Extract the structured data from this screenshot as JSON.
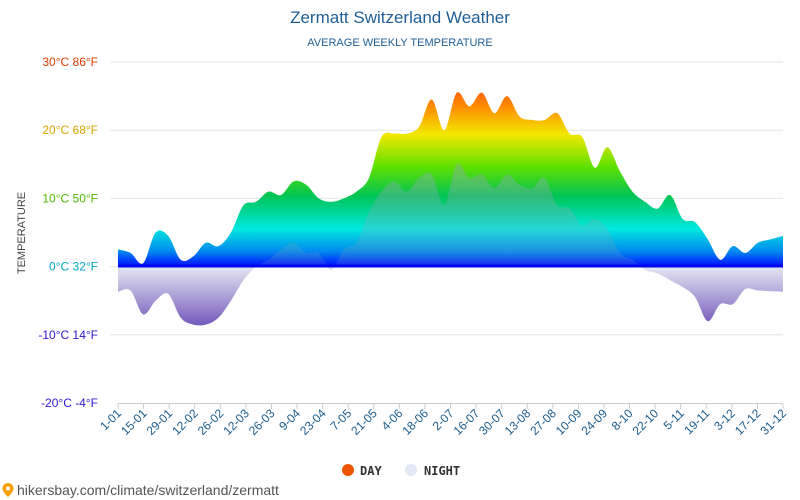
{
  "chart_data": {
    "type": "area",
    "title": "Zermatt Switzerland Weather",
    "subtitle": "AVERAGE WEEKLY TEMPERATURE",
    "ylabel": "TEMPERATURE",
    "ylim": [
      -20,
      30
    ],
    "y_ticks": [
      {
        "value": 30,
        "label": "30°C 86°F",
        "color": "#e03c00"
      },
      {
        "value": 20,
        "label": "20°C 68°F",
        "color": "#d9a400"
      },
      {
        "value": 10,
        "label": "10°C 50°F",
        "color": "#4fb800"
      },
      {
        "value": 0,
        "label": "0°C 32°F",
        "color": "#00a6c8"
      },
      {
        "value": -10,
        "label": "-10°C 14°F",
        "color": "#2c1ad0"
      },
      {
        "value": -20,
        "label": "-20°C -4°F",
        "color": "#2c1ad0"
      }
    ],
    "x_tick_labels": [
      "1-01",
      "15-01",
      "29-01",
      "12-02",
      "26-02",
      "12-03",
      "26-03",
      "9-04",
      "23-04",
      "7-05",
      "21-05",
      "4-06",
      "18-06",
      "2-07",
      "16-07",
      "30-07",
      "13-08",
      "27-08",
      "10-09",
      "24-09",
      "8-10",
      "22-10",
      "5-11",
      "19-11",
      "3-12",
      "17-12",
      "31-12"
    ],
    "series": [
      {
        "name": "DAY",
        "color": "#ee5500",
        "values": [
          2.5,
          2,
          0.5,
          5,
          4.5,
          1,
          1.5,
          3.5,
          3,
          5,
          9,
          9.5,
          11,
          10.5,
          12.5,
          12,
          10,
          9.5,
          10,
          11,
          13,
          19,
          19.5,
          19.5,
          20.5,
          24.5,
          20,
          25.5,
          23.5,
          25.5,
          22.5,
          25,
          22,
          21.5,
          21.5,
          22.5,
          19.5,
          19,
          14.5,
          17.5,
          14,
          11,
          9.5,
          8.5,
          10.5,
          7,
          6.5,
          4,
          1,
          3,
          2,
          3.5,
          4,
          4.5
        ]
      },
      {
        "name": "NIGHT",
        "color": "#e8eef7",
        "values": [
          -3.7,
          -3.5,
          -7,
          -5,
          -4,
          -7.5,
          -8.5,
          -8.5,
          -7.5,
          -5,
          -2,
          0,
          1,
          2.5,
          3.5,
          2,
          2,
          -0.5,
          2.5,
          3.5,
          8,
          11,
          12.5,
          11,
          13,
          13.5,
          9,
          15,
          13,
          13.5,
          11.5,
          13.5,
          12,
          11.5,
          13,
          9,
          8.5,
          6,
          7,
          5.5,
          2,
          1,
          -0.5,
          -1,
          -2,
          -3,
          -4.5,
          -8,
          -5.5,
          -5.5,
          -3.3,
          -3.5,
          -3.6,
          -3.7
        ]
      }
    ],
    "legend": {
      "placement": "bottom-center"
    },
    "grid": true
  },
  "source_url": "hikersbay.com/climate/switzerland/zermatt"
}
